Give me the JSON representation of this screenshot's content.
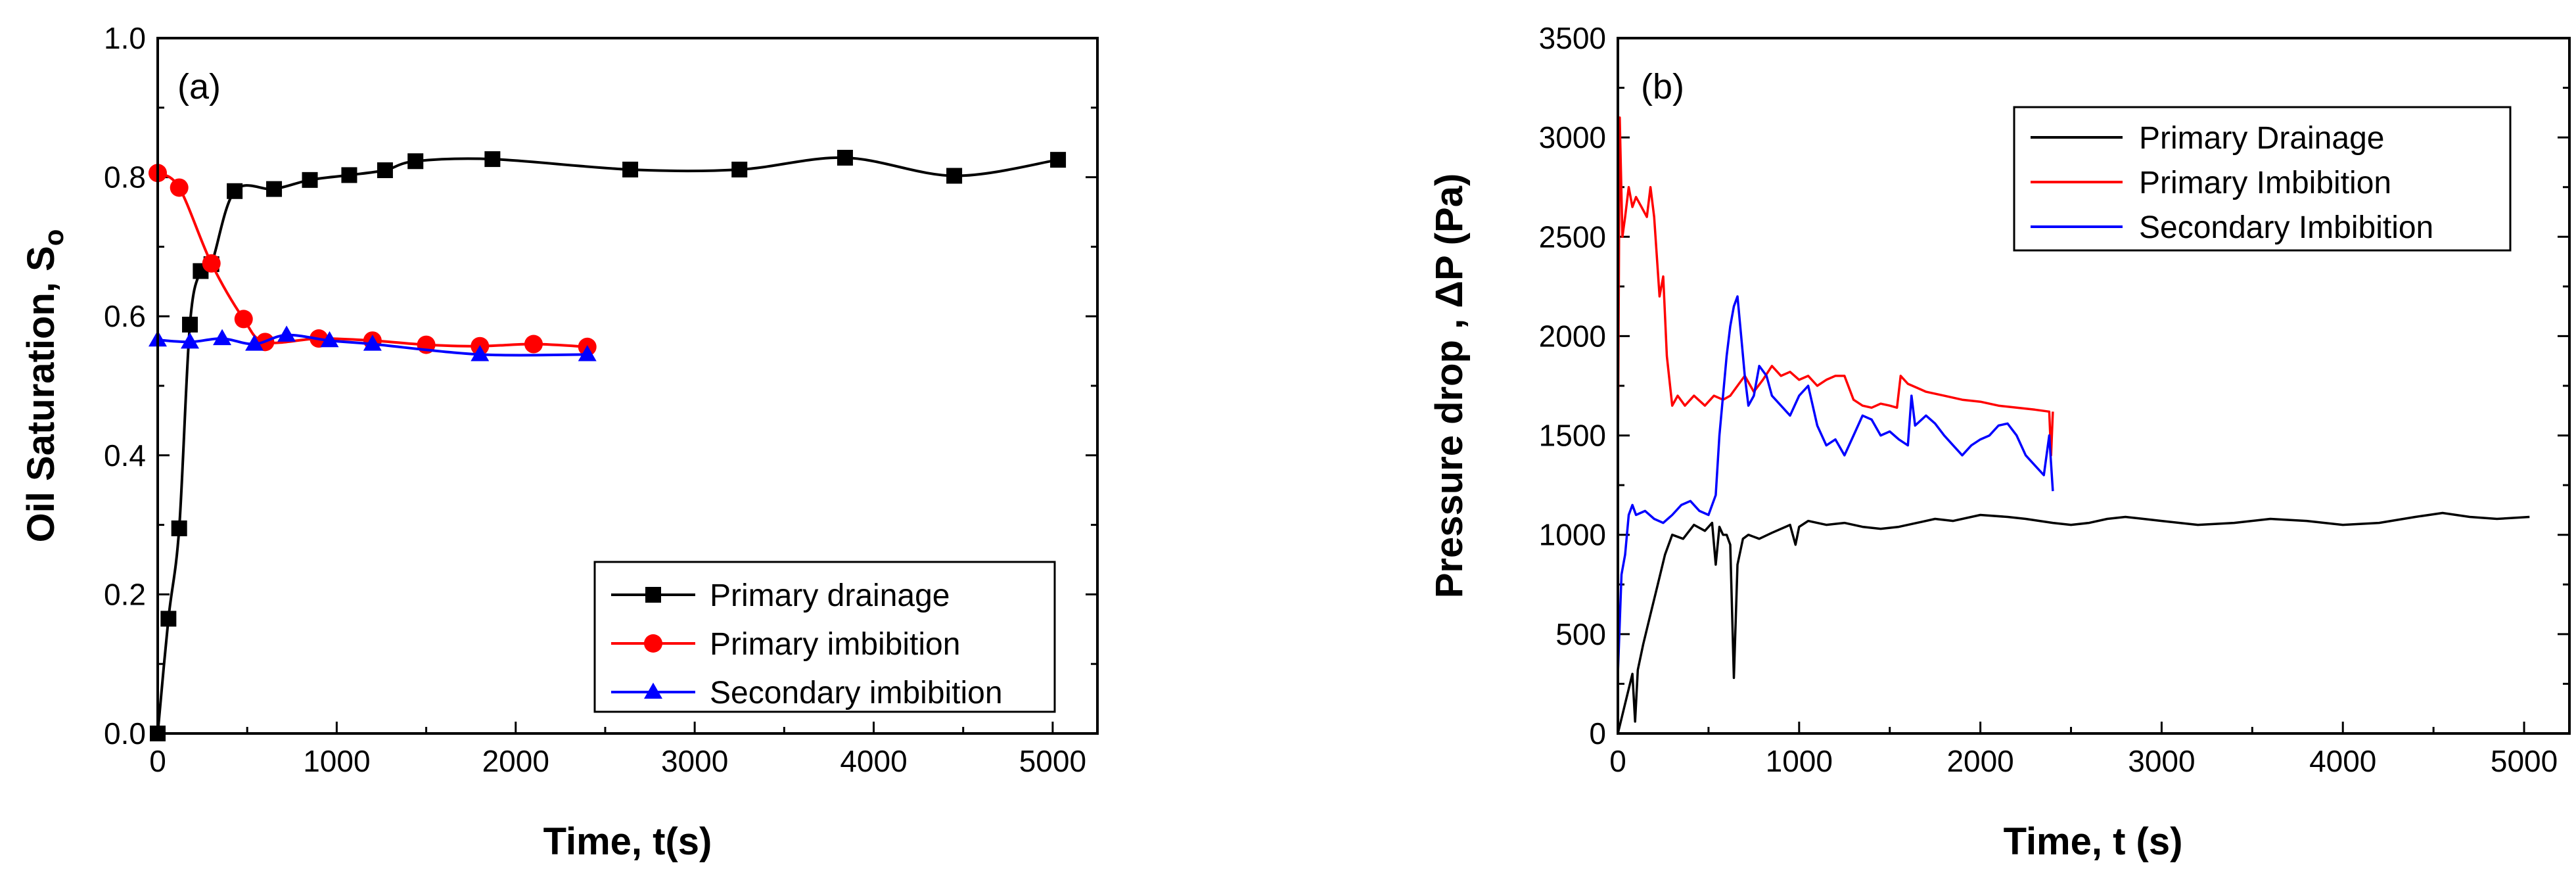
{
  "chart_data": [
    {
      "type": "line",
      "panel_label": "(a)",
      "xlabel": "Time, t(s)",
      "ylabel_main": "Oil Saturation, S",
      "ylabel_sub": "o",
      "xlim": [
        0,
        5250
      ],
      "ylim": [
        0,
        1.0
      ],
      "xticks": [
        0,
        1000,
        2000,
        3000,
        4000,
        5000
      ],
      "xtick_labels": [
        "0",
        "1000",
        "2000",
        "3000",
        "4000",
        "5000"
      ],
      "yticks": [
        0,
        0.2,
        0.4,
        0.6,
        0.8,
        1.0
      ],
      "ytick_labels": [
        "0.0",
        "0.2",
        "0.4",
        "0.6",
        "0.8",
        "1.0"
      ],
      "legend_position": "bottom-right",
      "series": [
        {
          "name": "Primary drainage",
          "color": "#000000",
          "marker": "square",
          "x": [
            0,
            60,
            120,
            180,
            240,
            300,
            430,
            650,
            850,
            1070,
            1270,
            1440,
            1870,
            2640,
            3250,
            3840,
            4450,
            5030
          ],
          "y": [
            0.0,
            0.165,
            0.295,
            0.588,
            0.665,
            0.675,
            0.78,
            0.783,
            0.796,
            0.803,
            0.81,
            0.823,
            0.826,
            0.811,
            0.811,
            0.828,
            0.802,
            0.825
          ]
        },
        {
          "name": "Primary imbibition",
          "color": "#ff0000",
          "marker": "circle",
          "x": [
            0,
            120,
            300,
            480,
            600,
            900,
            1200,
            1500,
            1800,
            2100,
            2400
          ],
          "y": [
            0.806,
            0.785,
            0.676,
            0.596,
            0.563,
            0.568,
            0.565,
            0.559,
            0.557,
            0.56,
            0.556
          ]
        },
        {
          "name": "Secondary imbibition",
          "color": "#0000ff",
          "marker": "triangle",
          "x": [
            0,
            180,
            360,
            540,
            720,
            960,
            1200,
            1800,
            2400
          ],
          "y": [
            0.566,
            0.563,
            0.568,
            0.56,
            0.573,
            0.565,
            0.56,
            0.545,
            0.545
          ]
        }
      ]
    },
    {
      "type": "line",
      "panel_label": "(b)",
      "xlabel": "Time, t (s)",
      "ylabel": "Pressure drop , ΔP (Pa)",
      "xlim": [
        0,
        5250
      ],
      "ylim": [
        0,
        3500
      ],
      "xticks": [
        0,
        1000,
        2000,
        3000,
        4000,
        5000
      ],
      "xtick_labels": [
        "0",
        "1000",
        "2000",
        "3000",
        "4000",
        "5000"
      ],
      "yticks": [
        0,
        500,
        1000,
        1500,
        2000,
        2500,
        3000,
        3500
      ],
      "ytick_labels": [
        "0",
        "500",
        "1000",
        "1500",
        "2000",
        "2500",
        "3000",
        "3500"
      ],
      "legend_position": "top-right",
      "series": [
        {
          "name": "Primary Drainage",
          "color": "#000000",
          "x": [
            0,
            40,
            80,
            95,
            110,
            140,
            180,
            220,
            260,
            300,
            360,
            420,
            480,
            520,
            540,
            560,
            580,
            600,
            620,
            640,
            660,
            690,
            720,
            780,
            850,
            950,
            980,
            1000,
            1050,
            1150,
            1250,
            1350,
            1450,
            1550,
            1650,
            1750,
            1850,
            2000,
            2150,
            2250,
            2400,
            2500,
            2600,
            2700,
            2800,
            2900,
            3000,
            3200,
            3400,
            3600,
            3800,
            4000,
            4200,
            4400,
            4550,
            4700,
            4850,
            5030
          ],
          "y": [
            0,
            150,
            300,
            60,
            320,
            450,
            600,
            750,
            900,
            1000,
            980,
            1050,
            1020,
            1060,
            850,
            1040,
            1000,
            1000,
            950,
            280,
            850,
            980,
            1000,
            980,
            1010,
            1050,
            950,
            1040,
            1070,
            1050,
            1060,
            1040,
            1030,
            1040,
            1060,
            1080,
            1070,
            1100,
            1090,
            1080,
            1060,
            1050,
            1060,
            1080,
            1090,
            1080,
            1070,
            1050,
            1060,
            1080,
            1070,
            1050,
            1060,
            1090,
            1110,
            1090,
            1080,
            1090
          ]
        },
        {
          "name": "Primary Imbibition",
          "color": "#ff0000",
          "x": [
            0,
            10,
            25,
            40,
            60,
            80,
            100,
            130,
            160,
            180,
            200,
            230,
            250,
            270,
            300,
            330,
            370,
            420,
            480,
            530,
            580,
            620,
            660,
            700,
            750,
            800,
            850,
            900,
            950,
            1000,
            1050,
            1100,
            1150,
            1200,
            1250,
            1300,
            1350,
            1400,
            1450,
            1500,
            1540,
            1560,
            1600,
            1650,
            1700,
            1800,
            1900,
            2000,
            2100,
            2200,
            2300,
            2380,
            2390,
            2400
          ],
          "y": [
            1400,
            3100,
            2500,
            2600,
            2750,
            2650,
            2700,
            2650,
            2600,
            2750,
            2600,
            2200,
            2300,
            1900,
            1650,
            1700,
            1650,
            1700,
            1650,
            1700,
            1680,
            1700,
            1750,
            1800,
            1720,
            1780,
            1850,
            1800,
            1820,
            1780,
            1800,
            1750,
            1780,
            1800,
            1800,
            1680,
            1650,
            1640,
            1660,
            1650,
            1640,
            1800,
            1760,
            1740,
            1720,
            1700,
            1680,
            1670,
            1650,
            1640,
            1630,
            1620,
            1400,
            1620
          ]
        },
        {
          "name": "Secondary Imbibition",
          "color": "#0000ff",
          "x": [
            0,
            20,
            40,
            60,
            80,
            100,
            150,
            200,
            250,
            300,
            350,
            400,
            450,
            500,
            540,
            560,
            580,
            600,
            620,
            640,
            660,
            680,
            700,
            720,
            750,
            780,
            820,
            850,
            900,
            950,
            1000,
            1050,
            1100,
            1150,
            1200,
            1250,
            1300,
            1350,
            1400,
            1450,
            1500,
            1550,
            1600,
            1620,
            1640,
            1700,
            1750,
            1800,
            1850,
            1900,
            1950,
            2000,
            2050,
            2100,
            2150,
            2200,
            2250,
            2300,
            2350,
            2380,
            2400
          ],
          "y": [
            300,
            800,
            900,
            1100,
            1150,
            1100,
            1120,
            1080,
            1060,
            1100,
            1150,
            1170,
            1120,
            1100,
            1200,
            1500,
            1700,
            1900,
            2050,
            2150,
            2200,
            2000,
            1800,
            1650,
            1700,
            1850,
            1800,
            1700,
            1650,
            1600,
            1700,
            1750,
            1550,
            1450,
            1480,
            1400,
            1500,
            1600,
            1580,
            1500,
            1520,
            1480,
            1450,
            1700,
            1550,
            1600,
            1560,
            1500,
            1450,
            1400,
            1450,
            1480,
            1500,
            1550,
            1560,
            1500,
            1400,
            1350,
            1300,
            1500,
            1220
          ]
        }
      ]
    }
  ]
}
